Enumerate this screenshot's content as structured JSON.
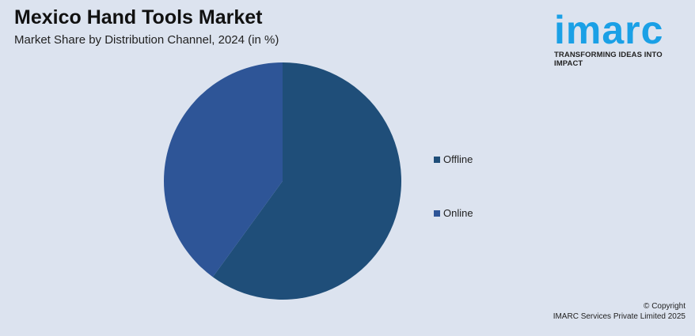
{
  "chart_data": {
    "type": "pie",
    "title": "Mexico Hand Tools Market",
    "subtitle": "Market Share by Distribution Channel, 2024 (in %)",
    "categories": [
      "Offline",
      "Online"
    ],
    "values": [
      60,
      40
    ],
    "colors": [
      "#1f4e79",
      "#2e5597"
    ],
    "legend_position": "right"
  },
  "logo": {
    "word": "imarc",
    "tagline": "TRANSFORMING IDEAS INTO IMPACT",
    "color": "#1aa0e6"
  },
  "footer": {
    "line1": "© Copyright",
    "line2": "IMARC Services Private Limited 2025"
  }
}
